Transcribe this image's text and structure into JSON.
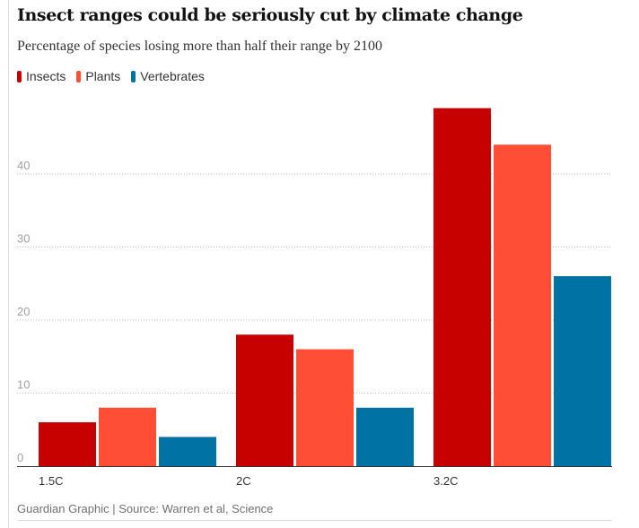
{
  "title": "Insect ranges could be seriously cut by climate change",
  "subtitle": "Percentage of species losing more than half their range by 2100",
  "footer": "Guardian Graphic | Source: Warren et al, Science",
  "chart_data": {
    "type": "bar",
    "title": "Insect ranges could be seriously cut by climate change",
    "subtitle": "Percentage of species losing more than half their range by 2100",
    "categories": [
      "1.5C",
      "2C",
      "3.2C"
    ],
    "series": [
      {
        "name": "Insects",
        "color": "#c70000",
        "values": [
          6,
          18,
          49
        ]
      },
      {
        "name": "Plants",
        "color": "#ff4e36",
        "values": [
          8,
          16,
          44
        ]
      },
      {
        "name": "Vertebrates",
        "color": "#0072a3",
        "values": [
          4,
          8,
          26
        ]
      }
    ],
    "yticks": [
      0,
      10,
      20,
      30,
      40
    ],
    "ylim": [
      0,
      49
    ],
    "grid": true,
    "legend_position": "top-left",
    "source": "Guardian Graphic | Source: Warren et al, Science"
  }
}
